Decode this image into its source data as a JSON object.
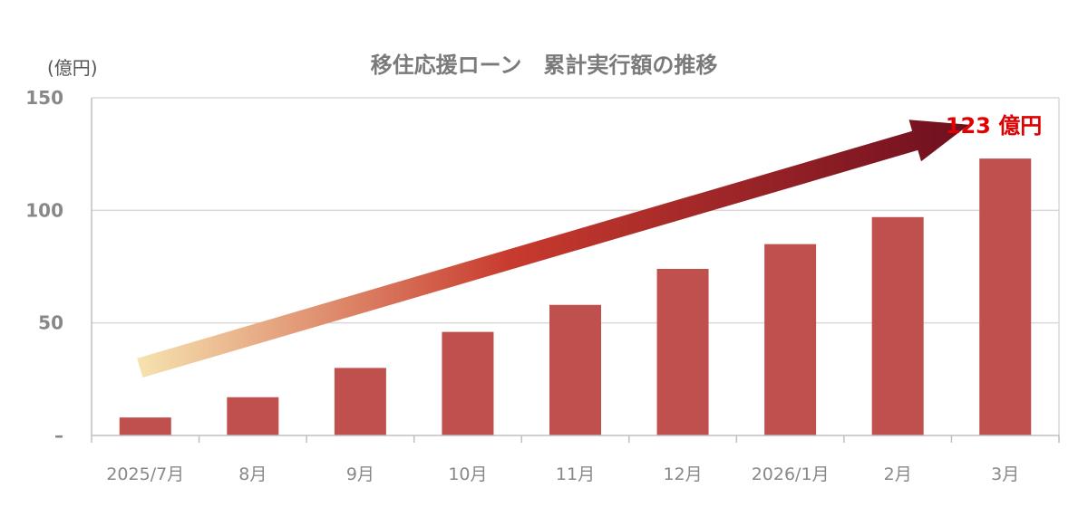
{
  "colors": {
    "bar": "#c0504d",
    "grid": "#d9d9d9",
    "axis": "#bfbfbf",
    "arrow_start": "#f6e3b0",
    "arrow_mid": "#c83a2e",
    "arrow_end": "#6e0f20",
    "callout": "#e00000"
  },
  "chart_data": {
    "type": "bar",
    "title": "移住応援ローン　累計実行額の推移",
    "ylabel": "(億円)",
    "xlabel": "",
    "categories": [
      "2025/7月",
      "8月",
      "9月",
      "10月",
      "11月",
      "12月",
      "2026/1月",
      "2月",
      "3月"
    ],
    "values": [
      8,
      17,
      30,
      46,
      58,
      74,
      85,
      97,
      123
    ],
    "ylim": [
      0,
      150
    ],
    "yticks": [
      0,
      50,
      100,
      150
    ],
    "ytick_labels": [
      "–",
      "50",
      "100",
      "150"
    ],
    "grid": true,
    "legend": "none",
    "annotation": {
      "text": "123 億円",
      "category": "3月",
      "arrow": "rising trend arrow from 2025/7月 to 3月"
    }
  }
}
